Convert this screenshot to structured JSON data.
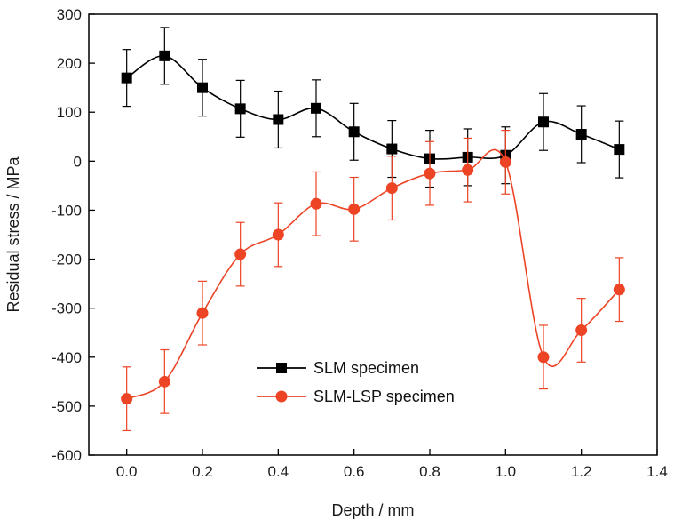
{
  "chart_data": {
    "type": "line",
    "xlabel": "Depth / mm",
    "ylabel": "Residual stress / MPa",
    "xlim": [
      -0.1,
      1.4
    ],
    "ylim": [
      -600,
      300
    ],
    "xticks": [
      "0.0",
      "0.2",
      "0.4",
      "0.6",
      "0.8",
      "1.0",
      "1.2",
      "1.4"
    ],
    "yticks": [
      "300",
      "200",
      "100",
      "0",
      "-100",
      "-200",
      "-300",
      "-400",
      "-500",
      "-600"
    ],
    "grid": false,
    "legend_position": "lower-center",
    "series": [
      {
        "name": "SLM specimen",
        "marker": "square",
        "color": "#000000",
        "x": [
          0.0,
          0.1,
          0.2,
          0.3,
          0.4,
          0.5,
          0.6,
          0.7,
          0.8,
          0.9,
          1.0,
          1.1,
          1.2,
          1.3
        ],
        "y": [
          170,
          215,
          150,
          107,
          85,
          108,
          60,
          25,
          5,
          8,
          12,
          80,
          55,
          24
        ],
        "error": [
          58,
          58,
          58,
          58,
          58,
          58,
          58,
          58,
          58,
          58,
          58,
          58,
          58,
          58
        ]
      },
      {
        "name": "SLM-LSP specimen",
        "marker": "circle",
        "color": "#ee4426",
        "x": [
          0.0,
          0.1,
          0.2,
          0.3,
          0.4,
          0.5,
          0.6,
          0.7,
          0.8,
          0.9,
          1.0,
          1.1,
          1.2,
          1.3
        ],
        "y": [
          -485,
          -450,
          -310,
          -190,
          -150,
          -87,
          -98,
          -55,
          -25,
          -18,
          -2,
          -400,
          -345,
          -262
        ],
        "error": [
          65,
          65,
          65,
          65,
          65,
          65,
          65,
          65,
          65,
          65,
          65,
          65,
          65,
          65
        ]
      }
    ]
  }
}
